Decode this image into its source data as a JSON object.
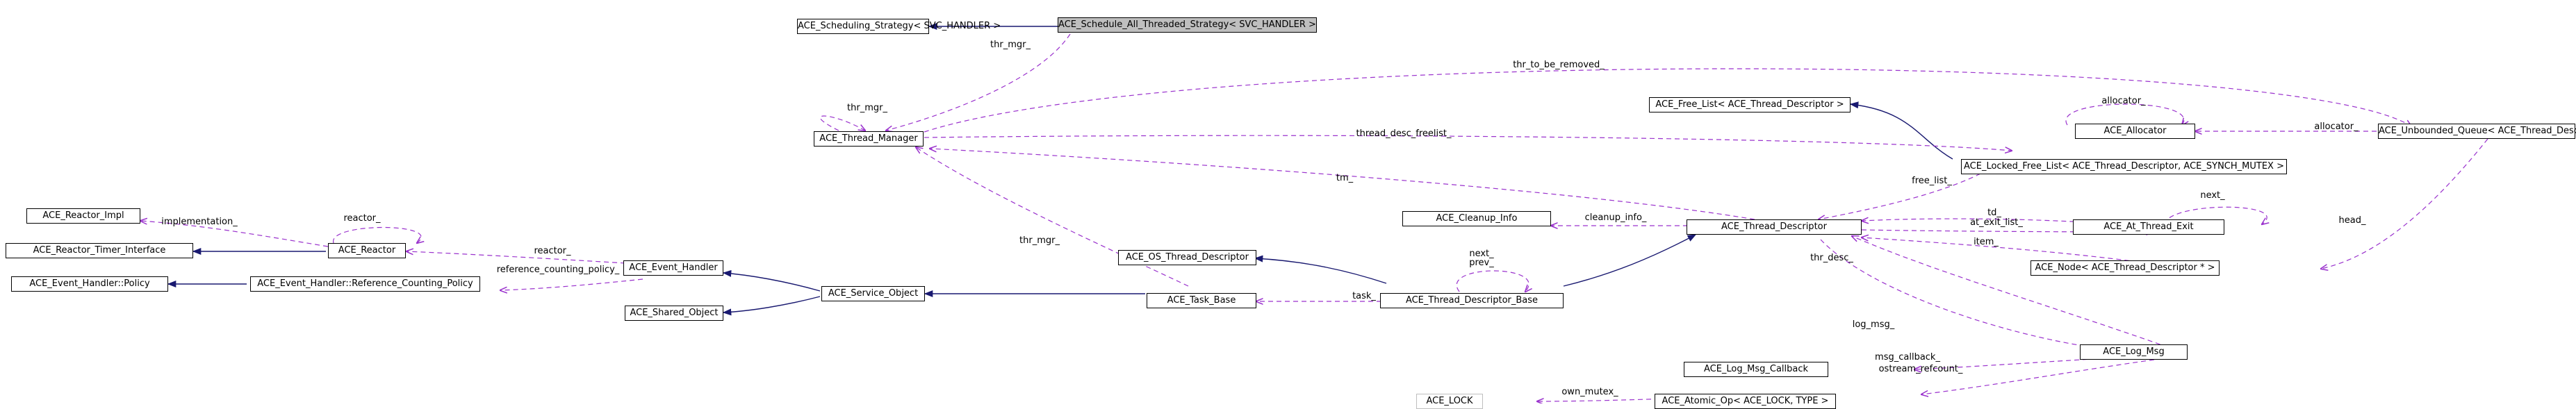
{
  "nodes": {
    "sched_strategy": "ACE_Scheduling_Strategy< SVC_HANDLER >",
    "sched_all": "ACE_Schedule_All_Threaded_Strategy< SVC_HANDLER >",
    "thread_manager": "ACE_Thread_Manager",
    "free_list": "ACE_Free_List< ACE_Thread_Descriptor >",
    "allocator": "ACE_Allocator",
    "unbounded_queue": "ACE_Unbounded_Queue< ACE_Thread_Descriptor * >",
    "locked_free_list": "ACE_Locked_Free_List< ACE_Thread_Descriptor, ACE_SYNCH_MUTEX >",
    "reactor_impl": "ACE_Reactor_Impl",
    "reactor": "ACE_Reactor",
    "reactor_timer": "ACE_Reactor_Timer_Interface",
    "cleanup_info": "ACE_Cleanup_Info",
    "thread_descriptor": "ACE_Thread_Descriptor",
    "at_thread_exit": "ACE_At_Thread_Exit",
    "event_handler": "ACE_Event_Handler",
    "os_thread_descriptor": "ACE_OS_Thread_Descriptor",
    "eh_policy": "ACE_Event_Handler::Policy",
    "eh_ref_policy": "ACE_Event_Handler::Reference_Counting_Policy",
    "service_object": "ACE_Service_Object",
    "task_base": "ACE_Task_Base",
    "thread_descriptor_base": "ACE_Thread_Descriptor_Base",
    "node_td": "ACE_Node< ACE_Thread_Descriptor * >",
    "shared_object": "ACE_Shared_Object",
    "log_msg": "ACE_Log_Msg",
    "log_msg_callback": "ACE_Log_Msg_Callback",
    "ace_lock": "ACE_LOCK",
    "atomic_op": "ACE_Atomic_Op< ACE_LOCK, TYPE >"
  },
  "edge_labels": {
    "thr_mgr_top": "thr_mgr_",
    "thr_mgr_self": "thr_mgr_",
    "thr_to_be_removed": "thr_to_be_removed_",
    "allocator_self": "allocator_",
    "allocator": "allocator_",
    "thread_desc_freelist": "thread_desc_freelist_",
    "free_list": "free_list_",
    "tm": "tm_",
    "implementation": "implementation_",
    "reactor_self": "reactor_",
    "reactor": "reactor_",
    "cleanup_info": "cleanup_info_",
    "td": "td_",
    "at_exit_list": "at_exit_list_",
    "next_ate": "next_",
    "head": "head_",
    "item": "item_",
    "ref_policy": "reference_counting_policy_",
    "thr_mgr_task": "thr_mgr_",
    "next_prev": "next_\nprev_",
    "task": "task_",
    "thr_desc": "thr_desc_",
    "log_msg": "log_msg_",
    "msg_callback": "msg_callback_",
    "ostream_refcount": "ostream_refcount_",
    "own_mutex": "own_mutex_"
  },
  "colors": {
    "inherit": "#191970",
    "usage": "#9a32cd",
    "focus_fill": "#bfbfbf",
    "grey_border": "#bfbfbf"
  }
}
